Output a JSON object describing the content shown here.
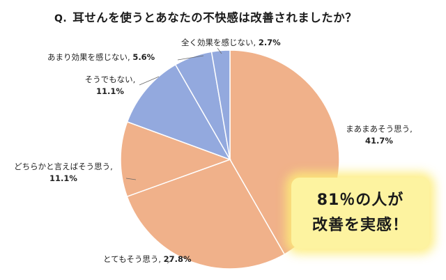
{
  "title": {
    "prefix": "Q.",
    "text": "耳せんを使うとあなたの不快感は改善されましたか？"
  },
  "chart_data": {
    "type": "pie",
    "title": "耳せんを使うとあなたの不快感は改善されましたか？",
    "start": "12 o'clock",
    "direction": "clockwise",
    "slices": [
      {
        "label": "まあまあそう思う",
        "value": 41.7,
        "display": "41.7%",
        "color": "#f0b18a"
      },
      {
        "label": "とてもそう思う",
        "value": 27.8,
        "display": "27.8%",
        "color": "#f0b18a"
      },
      {
        "label": "どちらかと言えばそう思う",
        "value": 11.1,
        "display": "11.1%",
        "color": "#f0b18a"
      },
      {
        "label": "そうでもない",
        "value": 11.1,
        "display": "11.1%",
        "color": "#93a9de"
      },
      {
        "label": "あまり効果を感じない",
        "value": 5.6,
        "display": "5.6%",
        "color": "#93a9de"
      },
      {
        "label": "全く効果を感じない",
        "value": 2.7,
        "display": "2.7%",
        "color": "#93a9de"
      }
    ]
  },
  "callout": {
    "line1": "81％の人が",
    "line2": "改善を実感！",
    "background": "#fdf3a0"
  }
}
